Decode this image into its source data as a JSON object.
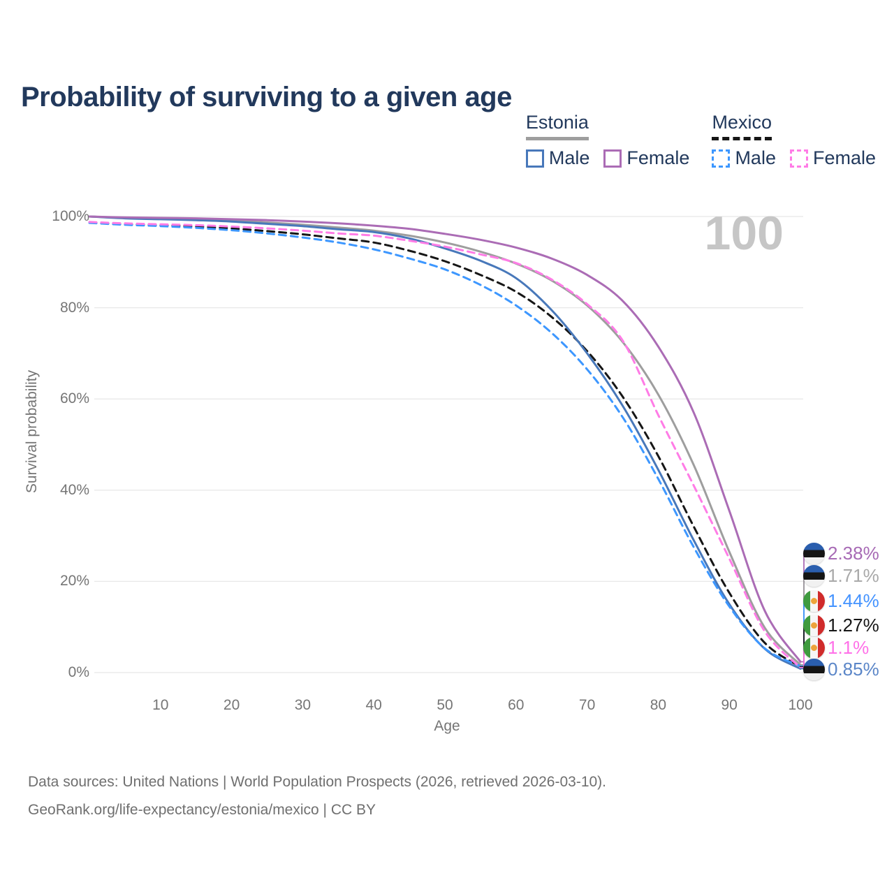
{
  "title": "Probability of surviving to a given age",
  "watermark": "100",
  "legend": {
    "groups": [
      {
        "label": "Estonia",
        "line_style": "solid",
        "line_color": "#9e9e9e",
        "items": [
          {
            "label": "Male",
            "color": "#4878ba",
            "dash": false
          },
          {
            "label": "Female",
            "color": "#ab6cb5",
            "dash": false
          }
        ]
      },
      {
        "label": "Mexico",
        "line_style": "dashed",
        "line_color": "#161616",
        "items": [
          {
            "label": "Male",
            "color": "#3d97ff",
            "dash": true
          },
          {
            "label": "Female",
            "color": "#ff7ce6",
            "dash": true
          }
        ]
      }
    ]
  },
  "axes": {
    "y_label": "Survival probability",
    "x_label": "Age",
    "y_ticks": [
      "100%",
      "80%",
      "60%",
      "40%",
      "20%",
      "0%"
    ],
    "x_ticks": [
      "10",
      "20",
      "30",
      "40",
      "50",
      "60",
      "70",
      "80",
      "90",
      "100"
    ]
  },
  "end_labels": [
    {
      "series": "estonia-female",
      "value": "2.38%",
      "color": "#a76ab5",
      "flag": "estonia"
    },
    {
      "series": "estonia-both",
      "value": "1.71%",
      "color": "#a9a9a9",
      "flag": "estonia"
    },
    {
      "series": "mexico-male",
      "value": "1.44%",
      "color": "#4493ff",
      "flag": "mexico"
    },
    {
      "series": "mexico-both",
      "value": "1.27%",
      "color": "#161616",
      "flag": "mexico"
    },
    {
      "series": "mexico-female",
      "value": "1.1%",
      "color": "#ff70e8",
      "flag": "mexico"
    },
    {
      "series": "estonia-male",
      "value": "0.85%",
      "color": "#5b86c8",
      "flag": "estonia"
    }
  ],
  "footer": {
    "line1": "Data sources: United Nations | World Population Prospects (2026, retrieved 2026-03-10).",
    "line2": "GeoRank.org/life-expectancy/estonia/mexico | CC BY"
  },
  "colors": {
    "grid": "#e8e8e8",
    "title_text": "#22395c",
    "axis_text": "#757575",
    "watermark": "#c6c6c6",
    "footer_text": "#6f6f6f"
  },
  "chart_data": {
    "type": "line",
    "title": "Probability of surviving to a given age",
    "xlabel": "Age",
    "ylabel": "Survival probability",
    "xlim": [
      0,
      100
    ],
    "ylim": [
      0,
      100
    ],
    "grid": "horizontal",
    "legend_position": "top-right",
    "x": [
      0,
      5,
      10,
      15,
      20,
      25,
      30,
      35,
      40,
      45,
      50,
      55,
      60,
      65,
      70,
      75,
      80,
      85,
      90,
      95,
      100
    ],
    "series": [
      {
        "id": "estonia-both",
        "name": "Estonia — Both sexes",
        "color": "#9e9e9e",
        "dash": false,
        "values": [
          100,
          99.7,
          99.5,
          99.3,
          99.1,
          98.7,
          98.2,
          97.6,
          96.9,
          95.8,
          94.3,
          92.3,
          89.7,
          86.0,
          80.5,
          72.5,
          61.0,
          45.5,
          26.5,
          9.8,
          1.71
        ],
        "end_value": 1.71
      },
      {
        "id": "mexico-both",
        "name": "Mexico — Both sexes",
        "color": "#161616",
        "dash": true,
        "values": [
          98.7,
          98.3,
          98.1,
          97.8,
          97.4,
          96.8,
          96.1,
          95.2,
          94.3,
          92.5,
          90.2,
          87.2,
          83.5,
          78.0,
          70.5,
          60.5,
          47.5,
          32.0,
          17.5,
          6.5,
          1.27
        ],
        "end_value": 1.27
      },
      {
        "id": "estonia-male",
        "name": "Estonia — Male",
        "color": "#4878ba",
        "dash": false,
        "values": [
          100,
          99.6,
          99.4,
          99.2,
          98.9,
          98.4,
          97.9,
          97.2,
          96.6,
          95.2,
          93.0,
          90.3,
          86.5,
          79.5,
          70.0,
          58.5,
          44.5,
          29.0,
          15.0,
          5.2,
          0.85
        ],
        "end_value": 0.85
      },
      {
        "id": "mexico-male",
        "name": "Mexico — Male",
        "color": "#3d97ff",
        "dash": true,
        "values": [
          98.6,
          98.2,
          97.9,
          97.5,
          97.0,
          96.3,
          95.4,
          94.3,
          92.8,
          90.8,
          88.4,
          85.0,
          80.5,
          74.5,
          66.5,
          56.0,
          42.5,
          27.5,
          14.5,
          5.3,
          1.44
        ],
        "end_value": 1.44
      },
      {
        "id": "mexico-female",
        "name": "Mexico — Female",
        "color": "#ff7ce6",
        "dash": true,
        "values": [
          98.8,
          98.5,
          98.3,
          98.1,
          97.8,
          97.4,
          96.9,
          96.3,
          95.8,
          94.7,
          93.4,
          91.7,
          89.8,
          86.2,
          80.8,
          72.8,
          56.5,
          41.0,
          25.0,
          9.0,
          1.1
        ],
        "end_value": 1.1
      },
      {
        "id": "estonia-female",
        "name": "Estonia — Female",
        "color": "#ab6cb5",
        "dash": false,
        "values": [
          100,
          99.8,
          99.7,
          99.6,
          99.4,
          99.2,
          98.9,
          98.5,
          98.0,
          97.3,
          96.2,
          94.9,
          93.2,
          90.8,
          87.2,
          81.5,
          71.5,
          57.0,
          35.5,
          13.5,
          2.38
        ],
        "end_value": 2.38
      }
    ]
  }
}
